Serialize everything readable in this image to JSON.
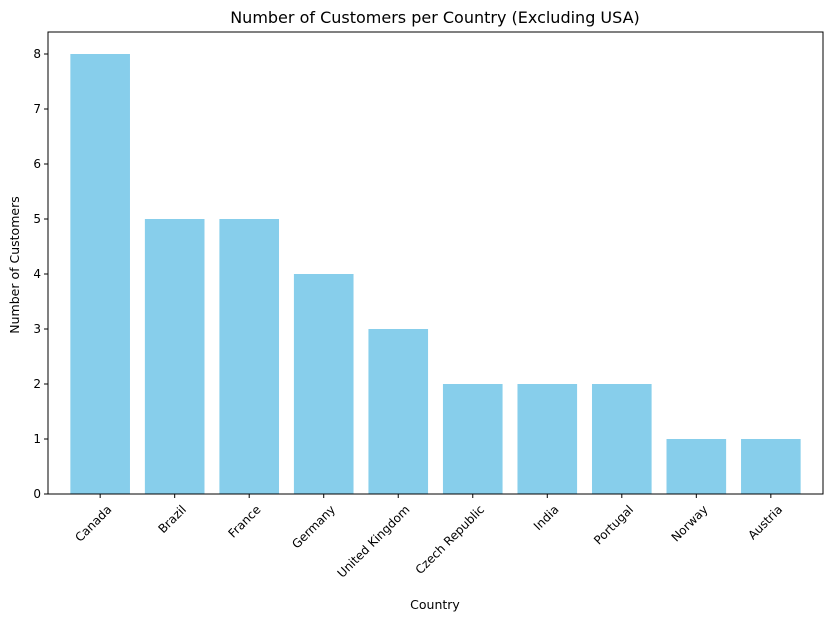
{
  "chart_data": {
    "type": "bar",
    "title": "Number of Customers per Country (Excluding USA)",
    "xlabel": "Country",
    "ylabel": "Number of Customers",
    "categories": [
      "Canada",
      "Brazil",
      "France",
      "Germany",
      "United Kingdom",
      "Czech Republic",
      "India",
      "Portugal",
      "Norway",
      "Austria"
    ],
    "values": [
      8,
      5,
      5,
      4,
      3,
      2,
      2,
      2,
      1,
      1
    ],
    "ylim": [
      0,
      8.4
    ],
    "yticks": [
      0,
      1,
      2,
      3,
      4,
      5,
      6,
      7,
      8
    ],
    "grid": false,
    "legend": "none",
    "bar_color": "#87CEEB",
    "tick_label_rotation": "45"
  }
}
